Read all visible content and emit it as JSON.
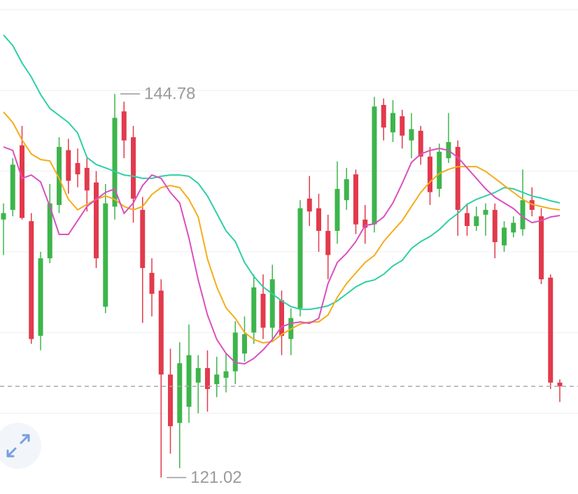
{
  "chart_data": {
    "type": "candlestick",
    "ylim": [
      120,
      150.6
    ],
    "yticks": [
      125,
      130,
      135,
      140,
      145,
      150
    ],
    "grid": true,
    "up_color": "#3db54b",
    "down_color": "#e23a4c",
    "open": [
      137.0,
      137.6,
      141.6,
      136.9,
      129.8,
      134.6,
      137.9,
      141.3,
      140.5,
      140.2,
      139.3,
      131.6,
      137.8,
      143.7,
      142.1,
      137.6,
      133.7,
      132.6,
      127.4,
      124.4,
      125.4,
      126.9,
      127.8,
      126.8,
      127.2,
      127.6,
      128.7,
      130.0,
      132.4,
      130.3,
      132.0,
      129.6,
      131.5,
      138.3,
      137.7,
      136.3,
      136.3,
      138.2,
      139.8,
      137.0,
      136.7,
      144.1,
      142.4,
      143.4,
      141.9,
      142.5,
      140.9,
      138.9,
      140.8,
      141.5,
      137.4,
      136.6,
      137.3,
      137.6,
      135.4,
      136.2,
      136.4,
      138.2,
      137.2,
      133.4,
      126.9
    ],
    "high": [
      138.0,
      140.8,
      142.8,
      137.4,
      135.0,
      139.2,
      142.1,
      142.0,
      141.4,
      140.8,
      140.0,
      139.2,
      144.78,
      144.3,
      142.8,
      138.4,
      134.6,
      133.3,
      129.0,
      129.4,
      130.5,
      128.6,
      128.9,
      128.5,
      128.7,
      130.7,
      131.0,
      133.6,
      133.6,
      134.2,
      132.6,
      131.5,
      138.2,
      139.7,
      138.6,
      137.3,
      140.6,
      140.2,
      140.1,
      137.9,
      144.6,
      144.5,
      144.4,
      143.8,
      143.6,
      142.8,
      141.5,
      141.7,
      143.6,
      141.9,
      138.0,
      137.8,
      138.0,
      138.0,
      136.9,
      137.2,
      140.1,
      139.0,
      137.7,
      133.6,
      127.1
    ],
    "low": [
      134.8,
      137.2,
      137.0,
      129.3,
      128.9,
      134.3,
      137.4,
      138.6,
      139.0,
      137.5,
      134.0,
      131.2,
      137.0,
      140.8,
      136.8,
      130.6,
      131.0,
      121.02,
      122.5,
      121.6,
      124.4,
      125.0,
      125.1,
      126.0,
      126.3,
      126.8,
      128.2,
      129.3,
      129.6,
      129.5,
      128.6,
      128.6,
      131.0,
      136.6,
      135.0,
      133.3,
      135.5,
      137.6,
      136.1,
      135.5,
      136.2,
      141.9,
      141.8,
      141.4,
      140.8,
      140.4,
      137.9,
      138.4,
      140.5,
      136.0,
      136.0,
      136.3,
      136.0,
      134.6,
      135.0,
      135.9,
      136.0,
      137.2,
      133.0,
      126.5,
      125.7
    ],
    "close": [
      137.4,
      140.4,
      137.1,
      129.6,
      134.6,
      138.0,
      141.5,
      139.4,
      139.8,
      138.8,
      134.6,
      138.0,
      143.3,
      141.9,
      138.3,
      134.0,
      132.4,
      127.4,
      124.2,
      128.1,
      128.6,
      127.8,
      126.5,
      127.4,
      127.6,
      130.0,
      129.9,
      132.8,
      130.3,
      133.3,
      129.8,
      130.9,
      137.7,
      137.5,
      136.3,
      134.8,
      138.9,
      139.5,
      136.7,
      136.5,
      144.0,
      142.7,
      143.6,
      142.2,
      142.6,
      140.9,
      138.7,
      141.2,
      141.8,
      137.6,
      136.6,
      137.2,
      137.6,
      135.6,
      136.5,
      136.8,
      138.2,
      137.6,
      133.3,
      126.9,
      126.67
    ],
    "moving_averages": [
      {
        "color": "#2fcfa6",
        "values": [
          148.43,
          147.78,
          146.7,
          145.83,
          144.75,
          143.88,
          143.45,
          143.01,
          142.36,
          140.85,
          140.41,
          140.2,
          139.98,
          139.76,
          139.68,
          139.55,
          139.55,
          139.68,
          139.76,
          139.76,
          139.68,
          139.24,
          138.46,
          137.38,
          136.3,
          135.64,
          134.34,
          133.48,
          132.83,
          132.39,
          131.96,
          131.61,
          131.44,
          131.44,
          131.53,
          131.66,
          131.96,
          132.39,
          132.83,
          133.13,
          133.26,
          133.61,
          134.13,
          134.47,
          135.21,
          135.64,
          135.95,
          136.38,
          136.94,
          137.38,
          137.94,
          138.25,
          138.46,
          138.68,
          138.98,
          138.9,
          138.68,
          138.46,
          138.33,
          138.16,
          138.03
        ]
      },
      {
        "color": "#f4ad1c",
        "values": [
          143.66,
          143.01,
          141.93,
          141.06,
          140.72,
          140.63,
          139.55,
          138.25,
          137.6,
          137.94,
          138.25,
          138.46,
          138.25,
          137.81,
          137.6,
          137.81,
          138.55,
          138.98,
          139.11,
          138.98,
          138.25,
          137.16,
          134.56,
          132.83,
          131.53,
          130.88,
          130.01,
          129.57,
          129.36,
          129.44,
          129.88,
          130.22,
          130.53,
          130.66,
          130.66,
          131.09,
          132.18,
          133.04,
          133.69,
          134.34,
          134.78,
          135.64,
          136.3,
          136.94,
          137.81,
          138.68,
          139.33,
          139.85,
          140.11,
          140.28,
          140.28,
          140.28,
          139.98,
          139.55,
          139.11,
          138.68,
          138.25,
          137.94,
          137.81,
          137.68,
          137.6
        ]
      },
      {
        "color": "#da4fbf",
        "values": [
          141.5,
          141.28,
          139.55,
          139.76,
          139.33,
          137.81,
          136.08,
          136.08,
          136.94,
          137.81,
          138.25,
          138.68,
          138.9,
          137.38,
          138.03,
          139.11,
          139.76,
          139.55,
          138.68,
          138.03,
          135.86,
          133.26,
          131.09,
          129.57,
          128.71,
          128.14,
          128.06,
          128.4,
          128.93,
          129.57,
          130.36,
          130.57,
          130.66,
          130.57,
          130.88,
          133.04,
          134.34,
          134.91,
          135.64,
          136.64,
          136.73,
          137.16,
          138.03,
          139.24,
          140.54,
          141.06,
          141.28,
          141.41,
          141.28,
          140.85,
          140.2,
          139.55,
          138.9,
          138.38,
          138.03,
          137.68,
          137.16,
          136.81,
          136.94,
          137.16,
          137.25
        ]
      }
    ]
  }
}
